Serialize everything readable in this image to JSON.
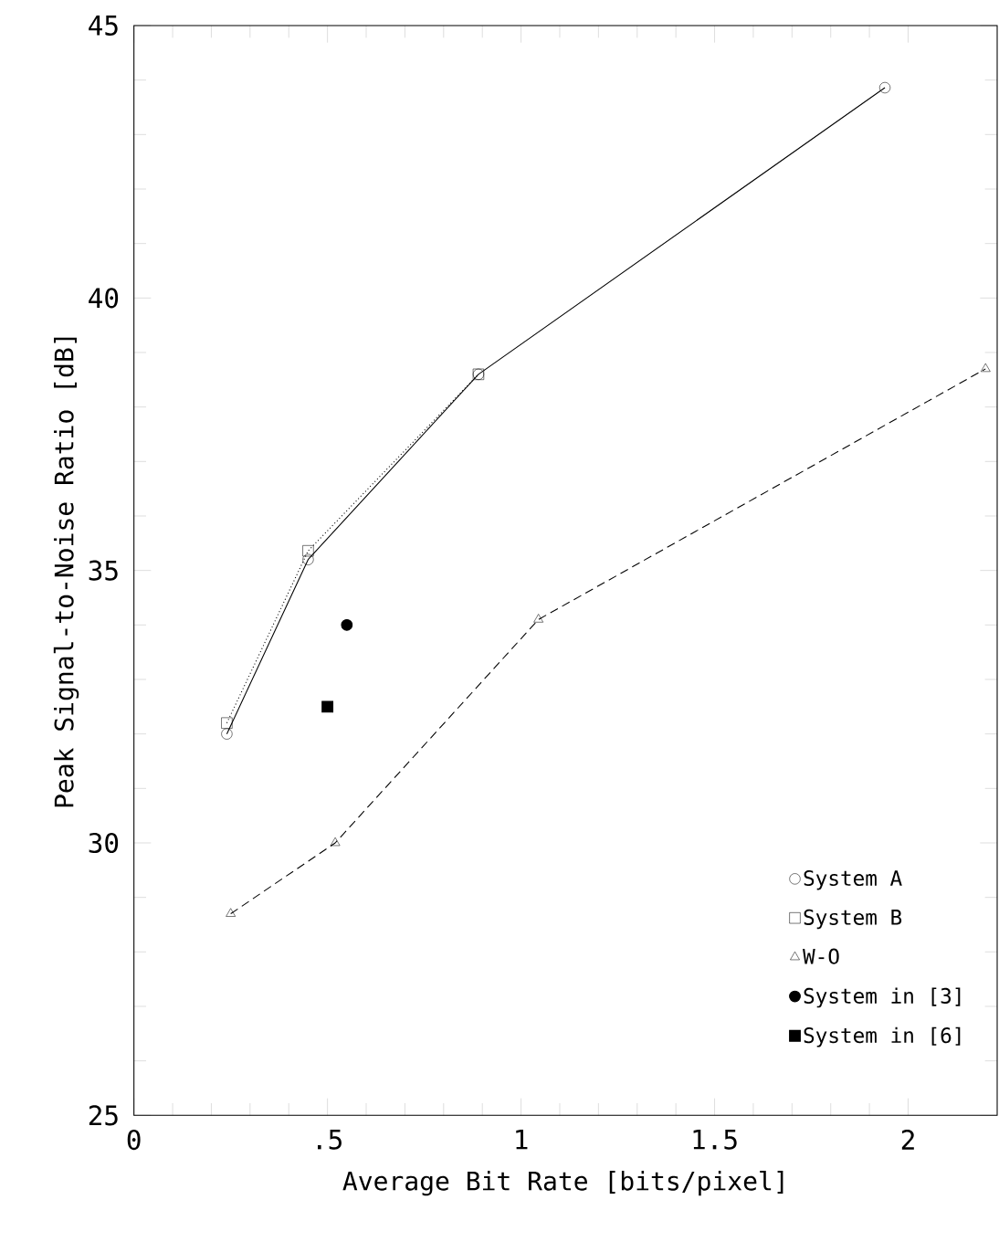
{
  "chart_data": {
    "type": "line",
    "xlabel": "Average Bit Rate [bits/pixel]",
    "ylabel": "Peak Signal-to-Noise Ratio [dB]",
    "xlim": [
      0,
      2.23
    ],
    "ylim": [
      25,
      45
    ],
    "xticks": [
      0,
      {
        "value": 0.5,
        "label": ".5"
      },
      1,
      1.5,
      2
    ],
    "yticks": [
      25,
      30,
      35,
      40,
      45
    ],
    "grid": false,
    "legend": "bottom right",
    "series": [
      {
        "name": "System A",
        "color": "#000000",
        "type": "line",
        "marker": "circle",
        "line_style": "solid",
        "x": [
          0.24,
          0.45,
          0.89,
          1.94
        ],
        "values": [
          32.0,
          35.2,
          38.6,
          43.86
        ]
      },
      {
        "name": "System B",
        "color": "#000000",
        "type": "line",
        "marker": "square",
        "line_style": "dotted",
        "x": [
          0.24,
          0.45,
          0.89
        ],
        "values": [
          32.2,
          35.36,
          38.6
        ]
      },
      {
        "name": "W-O",
        "color": "#000000",
        "type": "line",
        "marker": "triangle",
        "line_style": "dashed",
        "x": [
          0.25,
          0.52,
          1.045,
          2.2
        ],
        "values": [
          28.7,
          30.0,
          34.1,
          38.7
        ]
      },
      {
        "name": "System in [3]",
        "color": "#000000",
        "type": "scatter",
        "marker": "circle",
        "x": [
          0.55
        ],
        "values": [
          34.0
        ]
      },
      {
        "name": "System in [6]",
        "color": "#000000",
        "type": "scatter",
        "marker": "square",
        "x": [
          0.5
        ],
        "values": [
          32.5
        ]
      }
    ]
  }
}
